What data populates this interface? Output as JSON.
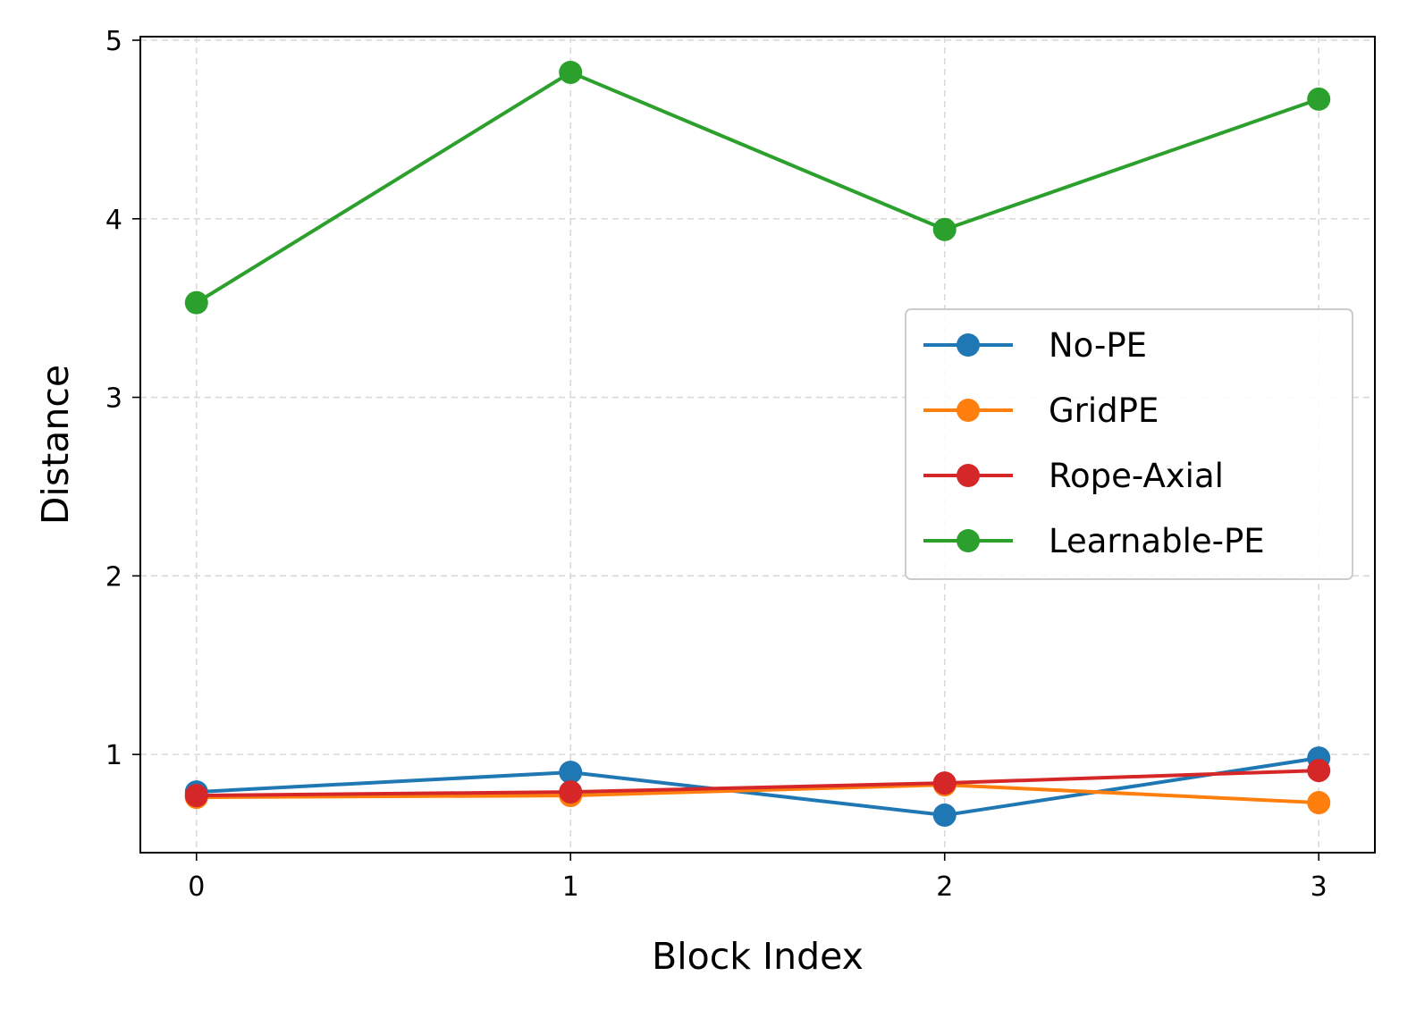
{
  "chart_data": {
    "type": "line",
    "title": "",
    "xlabel": "Block Index",
    "ylabel": "Distance",
    "x": [
      0,
      1,
      2,
      3
    ],
    "x_ticks": [
      "0",
      "1",
      "2",
      "3"
    ],
    "y_ticks": [
      "1",
      "2",
      "3",
      "4",
      "5"
    ],
    "xlim": [
      -0.15,
      3.15
    ],
    "ylim": [
      0.45,
      5.02
    ],
    "grid": true,
    "legend_position": "center-right",
    "series": [
      {
        "name": "No-PE",
        "color": "#1f77b4",
        "values": [
          0.79,
          0.9,
          0.66,
          0.98
        ]
      },
      {
        "name": "GridPE",
        "color": "#ff7f0e",
        "values": [
          0.76,
          0.77,
          0.83,
          0.73
        ]
      },
      {
        "name": "Rope-Axial",
        "color": "#d62728",
        "values": [
          0.77,
          0.79,
          0.84,
          0.91
        ]
      },
      {
        "name": "Learnable-PE",
        "color": "#2ca02c",
        "values": [
          3.53,
          4.82,
          3.94,
          4.67
        ]
      }
    ]
  }
}
